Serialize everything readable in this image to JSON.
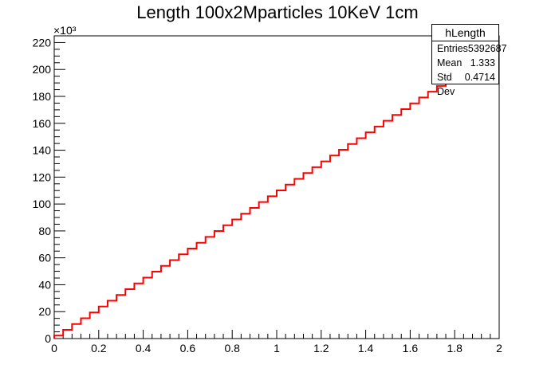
{
  "title": "Length 100x2Mparticles 10KeV 1cm",
  "stats": {
    "name": "hLength",
    "rows": [
      {
        "label": "Entries",
        "value": "5392687"
      },
      {
        "label": "Mean",
        "value": "1.333"
      },
      {
        "label": "Std Dev",
        "value": "0.4714"
      }
    ]
  },
  "colors": {
    "line": "#ff0000",
    "axis": "#000000"
  },
  "chart_data": {
    "type": "line",
    "style": "step",
    "title": "Length 100x2Mparticles 10KeV 1cm",
    "xlabel": "",
    "ylabel": "",
    "y_multiplier": "×10³",
    "xlim": [
      0,
      2
    ],
    "ylim": [
      0,
      225
    ],
    "grid": false,
    "legend": "stats box top-right",
    "x_ticks": [
      "0",
      "0.2",
      "0.4",
      "0.6",
      "0.8",
      "1",
      "1.2",
      "1.4",
      "1.6",
      "1.8",
      "2"
    ],
    "y_ticks": [
      "0",
      "20",
      "40",
      "60",
      "80",
      "100",
      "120",
      "140",
      "160",
      "180",
      "200",
      "220"
    ],
    "bin_edges": [
      0,
      0.04,
      0.08,
      0.12,
      0.16,
      0.2,
      0.24,
      0.28,
      0.32,
      0.36,
      0.4,
      0.44,
      0.48,
      0.52,
      0.56,
      0.6,
      0.64,
      0.68,
      0.72,
      0.76,
      0.8,
      0.84,
      0.88,
      0.92,
      0.96,
      1.0,
      1.04,
      1.08,
      1.12,
      1.16,
      1.2,
      1.24,
      1.28,
      1.32,
      1.36,
      1.4,
      1.44,
      1.48,
      1.52,
      1.56,
      1.6,
      1.64,
      1.68,
      1.72,
      1.76,
      1.8,
      1.84,
      1.88,
      1.92,
      1.96,
      2.0
    ],
    "values": [
      2.2,
      6.5,
      10.8,
      15.1,
      19.4,
      23.8,
      28.1,
      32.4,
      36.7,
      41.0,
      45.3,
      49.7,
      54.0,
      58.3,
      62.6,
      66.9,
      71.2,
      75.6,
      79.9,
      84.2,
      88.5,
      92.8,
      97.1,
      101.5,
      105.8,
      110.1,
      114.4,
      118.7,
      123.0,
      127.4,
      131.7,
      136.0,
      140.3,
      144.6,
      148.9,
      153.3,
      157.6,
      161.9,
      166.2,
      170.5,
      174.8,
      179.2,
      183.5,
      187.8,
      192.1,
      196.4,
      200.7,
      205.1,
      209.4,
      213.7
    ]
  }
}
